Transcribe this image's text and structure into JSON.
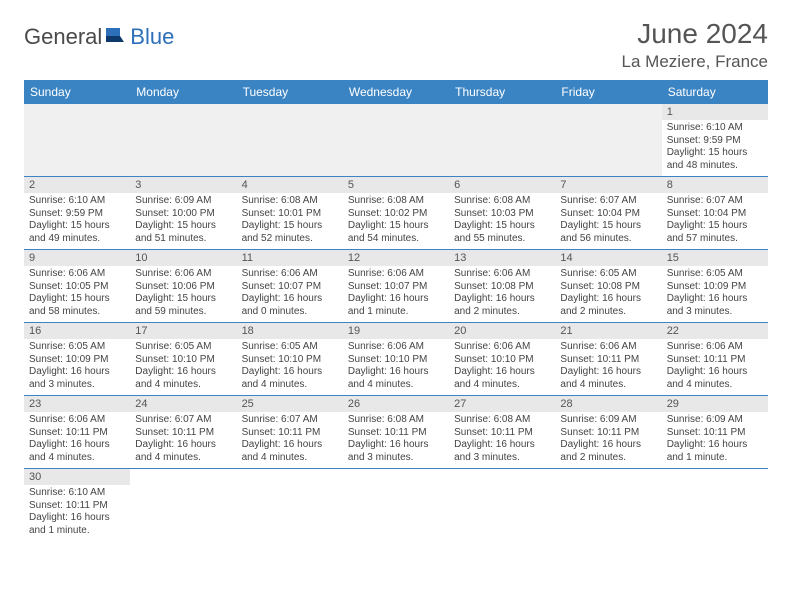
{
  "brand": {
    "part1": "General",
    "part2": "Blue"
  },
  "title": "June 2024",
  "location": "La Meziere, France",
  "colors": {
    "header_bg": "#3b84c4",
    "header_fg": "#ffffff",
    "daynum_bg": "#e8e8e8",
    "rule": "#3b84c4",
    "text": "#444444"
  },
  "weekdays": [
    "Sunday",
    "Monday",
    "Tuesday",
    "Wednesday",
    "Thursday",
    "Friday",
    "Saturday"
  ],
  "cells": [
    {
      "blank": true
    },
    {
      "blank": true
    },
    {
      "blank": true
    },
    {
      "blank": true
    },
    {
      "blank": true
    },
    {
      "blank": true
    },
    {
      "n": "1",
      "sr": "Sunrise: 6:10 AM",
      "ss": "Sunset: 9:59 PM",
      "dl": "Daylight: 15 hours and 48 minutes."
    },
    {
      "n": "2",
      "sr": "Sunrise: 6:10 AM",
      "ss": "Sunset: 9:59 PM",
      "dl": "Daylight: 15 hours and 49 minutes."
    },
    {
      "n": "3",
      "sr": "Sunrise: 6:09 AM",
      "ss": "Sunset: 10:00 PM",
      "dl": "Daylight: 15 hours and 51 minutes."
    },
    {
      "n": "4",
      "sr": "Sunrise: 6:08 AM",
      "ss": "Sunset: 10:01 PM",
      "dl": "Daylight: 15 hours and 52 minutes."
    },
    {
      "n": "5",
      "sr": "Sunrise: 6:08 AM",
      "ss": "Sunset: 10:02 PM",
      "dl": "Daylight: 15 hours and 54 minutes."
    },
    {
      "n": "6",
      "sr": "Sunrise: 6:08 AM",
      "ss": "Sunset: 10:03 PM",
      "dl": "Daylight: 15 hours and 55 minutes."
    },
    {
      "n": "7",
      "sr": "Sunrise: 6:07 AM",
      "ss": "Sunset: 10:04 PM",
      "dl": "Daylight: 15 hours and 56 minutes."
    },
    {
      "n": "8",
      "sr": "Sunrise: 6:07 AM",
      "ss": "Sunset: 10:04 PM",
      "dl": "Daylight: 15 hours and 57 minutes."
    },
    {
      "n": "9",
      "sr": "Sunrise: 6:06 AM",
      "ss": "Sunset: 10:05 PM",
      "dl": "Daylight: 15 hours and 58 minutes."
    },
    {
      "n": "10",
      "sr": "Sunrise: 6:06 AM",
      "ss": "Sunset: 10:06 PM",
      "dl": "Daylight: 15 hours and 59 minutes."
    },
    {
      "n": "11",
      "sr": "Sunrise: 6:06 AM",
      "ss": "Sunset: 10:07 PM",
      "dl": "Daylight: 16 hours and 0 minutes."
    },
    {
      "n": "12",
      "sr": "Sunrise: 6:06 AM",
      "ss": "Sunset: 10:07 PM",
      "dl": "Daylight: 16 hours and 1 minute."
    },
    {
      "n": "13",
      "sr": "Sunrise: 6:06 AM",
      "ss": "Sunset: 10:08 PM",
      "dl": "Daylight: 16 hours and 2 minutes."
    },
    {
      "n": "14",
      "sr": "Sunrise: 6:05 AM",
      "ss": "Sunset: 10:08 PM",
      "dl": "Daylight: 16 hours and 2 minutes."
    },
    {
      "n": "15",
      "sr": "Sunrise: 6:05 AM",
      "ss": "Sunset: 10:09 PM",
      "dl": "Daylight: 16 hours and 3 minutes."
    },
    {
      "n": "16",
      "sr": "Sunrise: 6:05 AM",
      "ss": "Sunset: 10:09 PM",
      "dl": "Daylight: 16 hours and 3 minutes."
    },
    {
      "n": "17",
      "sr": "Sunrise: 6:05 AM",
      "ss": "Sunset: 10:10 PM",
      "dl": "Daylight: 16 hours and 4 minutes."
    },
    {
      "n": "18",
      "sr": "Sunrise: 6:05 AM",
      "ss": "Sunset: 10:10 PM",
      "dl": "Daylight: 16 hours and 4 minutes."
    },
    {
      "n": "19",
      "sr": "Sunrise: 6:06 AM",
      "ss": "Sunset: 10:10 PM",
      "dl": "Daylight: 16 hours and 4 minutes."
    },
    {
      "n": "20",
      "sr": "Sunrise: 6:06 AM",
      "ss": "Sunset: 10:10 PM",
      "dl": "Daylight: 16 hours and 4 minutes."
    },
    {
      "n": "21",
      "sr": "Sunrise: 6:06 AM",
      "ss": "Sunset: 10:11 PM",
      "dl": "Daylight: 16 hours and 4 minutes."
    },
    {
      "n": "22",
      "sr": "Sunrise: 6:06 AM",
      "ss": "Sunset: 10:11 PM",
      "dl": "Daylight: 16 hours and 4 minutes."
    },
    {
      "n": "23",
      "sr": "Sunrise: 6:06 AM",
      "ss": "Sunset: 10:11 PM",
      "dl": "Daylight: 16 hours and 4 minutes."
    },
    {
      "n": "24",
      "sr": "Sunrise: 6:07 AM",
      "ss": "Sunset: 10:11 PM",
      "dl": "Daylight: 16 hours and 4 minutes."
    },
    {
      "n": "25",
      "sr": "Sunrise: 6:07 AM",
      "ss": "Sunset: 10:11 PM",
      "dl": "Daylight: 16 hours and 4 minutes."
    },
    {
      "n": "26",
      "sr": "Sunrise: 6:08 AM",
      "ss": "Sunset: 10:11 PM",
      "dl": "Daylight: 16 hours and 3 minutes."
    },
    {
      "n": "27",
      "sr": "Sunrise: 6:08 AM",
      "ss": "Sunset: 10:11 PM",
      "dl": "Daylight: 16 hours and 3 minutes."
    },
    {
      "n": "28",
      "sr": "Sunrise: 6:09 AM",
      "ss": "Sunset: 10:11 PM",
      "dl": "Daylight: 16 hours and 2 minutes."
    },
    {
      "n": "29",
      "sr": "Sunrise: 6:09 AM",
      "ss": "Sunset: 10:11 PM",
      "dl": "Daylight: 16 hours and 1 minute."
    },
    {
      "n": "30",
      "sr": "Sunrise: 6:10 AM",
      "ss": "Sunset: 10:11 PM",
      "dl": "Daylight: 16 hours and 1 minute."
    },
    {
      "blank": true
    },
    {
      "blank": true
    },
    {
      "blank": true
    },
    {
      "blank": true
    },
    {
      "blank": true
    },
    {
      "blank": true
    }
  ]
}
